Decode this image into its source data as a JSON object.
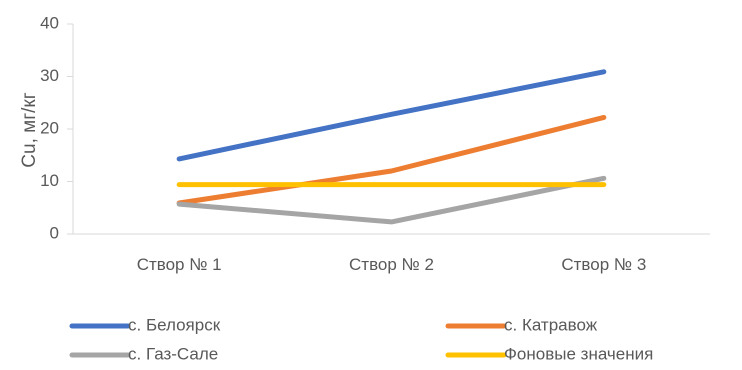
{
  "chart_data": {
    "type": "line",
    "categories": [
      "Створ № 1",
      "Створ № 2",
      "Створ № 3"
    ],
    "series": [
      {
        "name": "с. Белоярск",
        "values": [
          14.3,
          22.8,
          30.9
        ],
        "color": "#4472C4"
      },
      {
        "name": "с. Катравож",
        "values": [
          5.9,
          12.0,
          22.2
        ],
        "color": "#ED7D31"
      },
      {
        "name": "с. Газ-Сале",
        "values": [
          5.7,
          2.3,
          10.6
        ],
        "color": "#A5A5A5"
      },
      {
        "name": "Фоновые значения",
        "values": [
          9.4,
          9.4,
          9.4
        ],
        "color": "#FFC000"
      }
    ],
    "ylabel": "Cu, мг/кг",
    "xlabel": "",
    "ylim": [
      0,
      40
    ],
    "yticks": [
      0,
      10,
      20,
      30,
      40
    ],
    "grid": false,
    "legend_position": "bottom"
  }
}
